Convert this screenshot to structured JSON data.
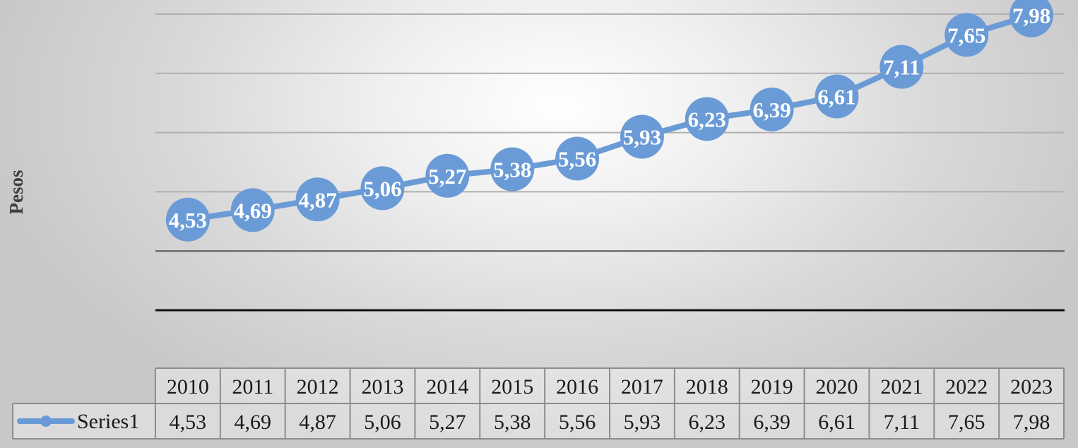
{
  "colors": {
    "series": "#6a9bd6",
    "label_text": "#ffffff",
    "grid": "#b0b0b0",
    "axis": "#111111"
  },
  "chart_data": {
    "type": "line",
    "categories": [
      "2010",
      "2011",
      "2012",
      "2013",
      "2014",
      "2015",
      "2016",
      "2017",
      "2018",
      "2019",
      "2020",
      "2021",
      "2022",
      "2023"
    ],
    "series": [
      {
        "name": "Series1",
        "values": [
          4.53,
          4.69,
          4.87,
          5.06,
          5.27,
          5.38,
          5.56,
          5.93,
          6.23,
          6.39,
          6.61,
          7.11,
          7.65,
          7.98
        ],
        "labels": [
          "4,53",
          "4,69",
          "4,87",
          "5,06",
          "5,27",
          "5,38",
          "5,56",
          "5,93",
          "6,23",
          "6,39",
          "6,61",
          "7,11",
          "7,65",
          "7,98"
        ]
      }
    ],
    "xlabel": "",
    "ylabel": "Pesos",
    "ylim": [
      3,
      8
    ],
    "gridlines_at": [
      4,
      5,
      6,
      7,
      8
    ],
    "grid": true,
    "data_labels": true,
    "markers": "circle",
    "data_table": true,
    "legend": "data-table-key"
  }
}
